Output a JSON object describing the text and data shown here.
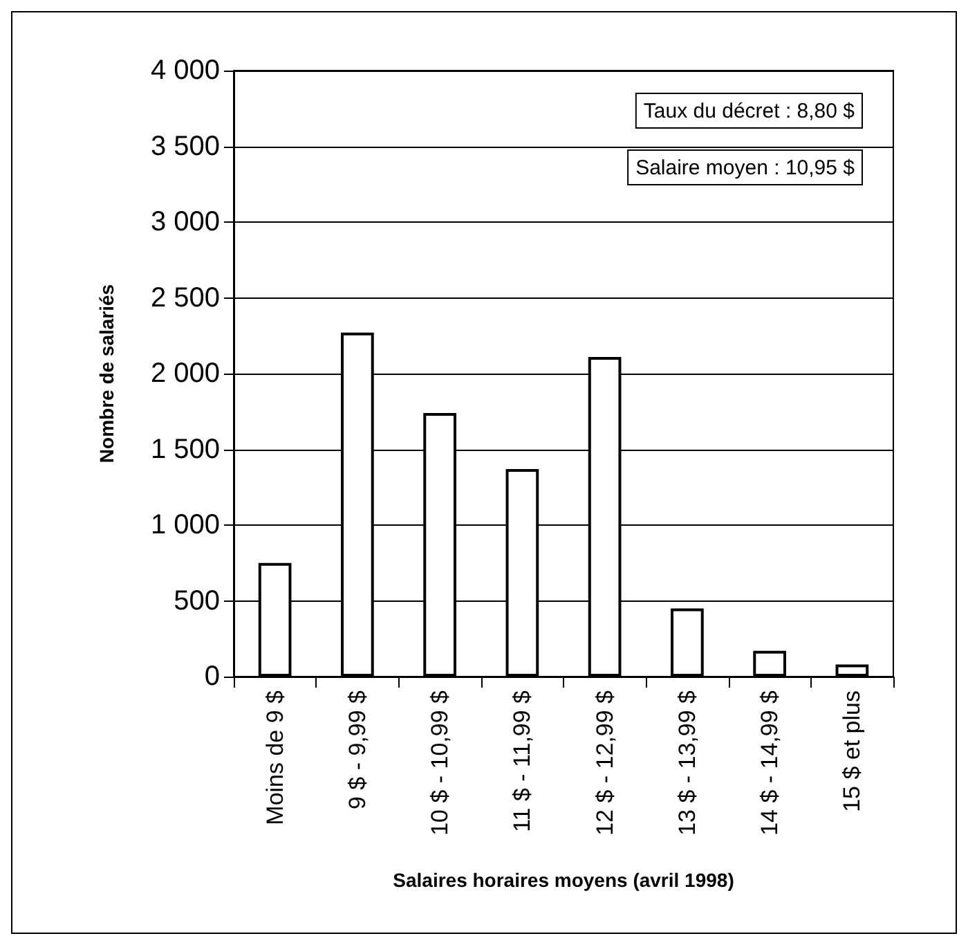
{
  "chart_data": {
    "type": "bar",
    "xlabel": "Salaires horaires moyens (avril 1998)",
    "ylabel": "Nombre de salariés",
    "categories": [
      "Moins de 9 $",
      "9 $ - 9,99 $",
      "10 $ - 10,99 $",
      "11 $ - 11,99 $",
      "12 $ - 12,99 $",
      "13 $ - 13,99 $",
      "14 $ - 14,99 $",
      "15 $ et plus"
    ],
    "values": [
      750,
      2270,
      1740,
      1370,
      2110,
      450,
      170,
      80
    ],
    "color": "#ffffff",
    "ylim": [
      0,
      4000
    ],
    "yticks": [
      0,
      500,
      {
        "value": 1000,
        "label": "1 000"
      },
      {
        "value": 1500,
        "label": "1 500"
      },
      {
        "value": 2000,
        "label": "2 000"
      },
      {
        "value": 2500,
        "label": "2 500"
      },
      {
        "value": 3000,
        "label": "3 000"
      },
      {
        "value": 3500,
        "label": "3 500"
      },
      {
        "value": 4000,
        "label": "4 000"
      }
    ],
    "grid": "y",
    "annotations": [
      "Taux du décret : 8,80 $",
      "Salaire moyen : 10,95 $"
    ]
  }
}
